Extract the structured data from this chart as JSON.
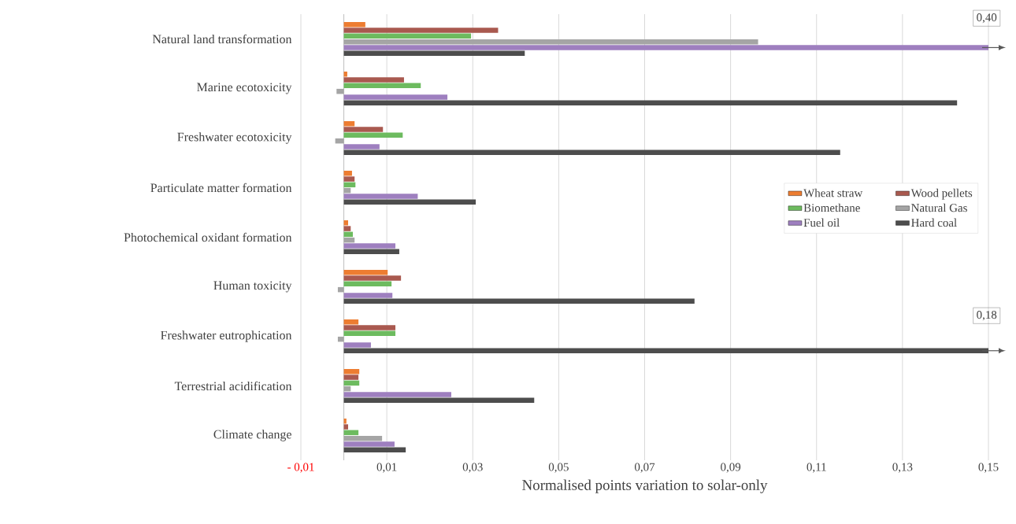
{
  "chart_data": {
    "type": "bar",
    "orientation": "horizontal",
    "xlabel": "Normalised points variation to solar-only",
    "categories": [
      "Natural land transformation",
      "Marine ecotoxicity",
      "Freshwater ecotoxicity",
      "Particulate matter formation",
      "Photochemical oxidant formation",
      "Human toxicity",
      "Freshwater eutrophication",
      "Terrestrial acidification",
      "Climate change"
    ],
    "series": [
      {
        "name": "Wheat straw",
        "color": "#ed7d31",
        "values": [
          0.005,
          0.0008,
          0.0025,
          0.0019,
          0.001,
          0.0102,
          0.0034,
          0.0036,
          0.0006
        ]
      },
      {
        "name": "Wood pellets",
        "color": "#a9594f",
        "values": [
          0.0359,
          0.014,
          0.0091,
          0.0025,
          0.0016,
          0.0133,
          0.012,
          0.0034,
          0.001
        ]
      },
      {
        "name": "Biomethane",
        "color": "#6dbb5f",
        "values": [
          0.0296,
          0.0179,
          0.0137,
          0.0027,
          0.0021,
          0.0111,
          0.012,
          0.0036,
          0.0034
        ]
      },
      {
        "name": "Natural Gas",
        "color": "#a5a5a5",
        "values": [
          0.0964,
          -0.0017,
          -0.002,
          0.0016,
          0.0025,
          -0.0014,
          -0.0014,
          0.0016,
          0.0089
        ]
      },
      {
        "name": "Fuel oil",
        "color": "#9e7fbf",
        "values": [
          0.15,
          0.0241,
          0.0083,
          0.0172,
          0.012,
          0.0113,
          0.0063,
          0.025,
          0.0118
        ]
      },
      {
        "name": "Hard coal",
        "color": "#4d4d4d",
        "values": [
          0.0421,
          0.1427,
          0.1155,
          0.0307,
          0.0129,
          0.0816,
          0.15,
          0.0443,
          0.0144
        ]
      }
    ],
    "xlim": [
      -0.01,
      0.15
    ],
    "xticks": [
      {
        "value": -0.01,
        "label": "- 0,01"
      },
      {
        "value": 0.01,
        "label": "0,01"
      },
      {
        "value": 0.03,
        "label": "0,03"
      },
      {
        "value": 0.05,
        "label": "0,05"
      },
      {
        "value": 0.07,
        "label": "0,07"
      },
      {
        "value": 0.09,
        "label": "0,09"
      },
      {
        "value": 0.11,
        "label": "0,11"
      },
      {
        "value": 0.13,
        "label": "0,13"
      },
      {
        "value": 0.15,
        "label": "0,15"
      }
    ],
    "grid": "x",
    "legend": "right",
    "annotations": [
      "0,40",
      "0,18"
    ]
  }
}
